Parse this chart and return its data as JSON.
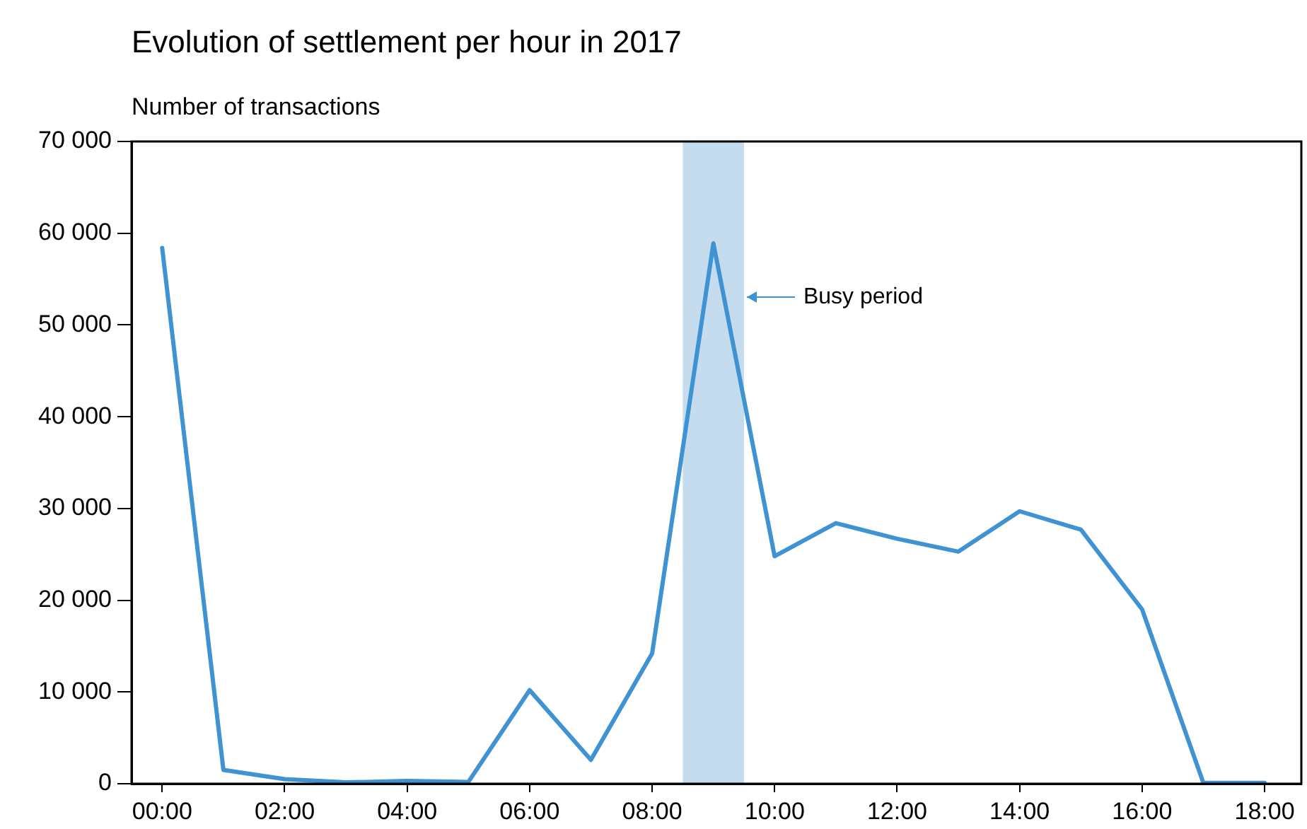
{
  "chart_data": {
    "type": "line",
    "title": "Evolution of settlement per hour in 2017",
    "ylabel": "Number of transactions",
    "x": [
      0,
      1,
      2,
      3,
      4,
      5,
      6,
      7,
      8,
      9,
      10,
      11,
      12,
      13,
      14,
      15,
      16,
      17,
      18
    ],
    "series": [
      {
        "color": "#3f93d2",
        "values": [
          58400,
          1500,
          500,
          150,
          300,
          200,
          10200,
          2600,
          14200,
          58900,
          24800,
          28400,
          26700,
          25300,
          29700,
          27700,
          19000,
          100,
          100
        ]
      }
    ],
    "xlim": [
      -0.5,
      18.6
    ],
    "xticks": [
      {
        "value": 0,
        "label": "00:00"
      },
      {
        "value": 2,
        "label": "02:00"
      },
      {
        "value": 4,
        "label": "04:00"
      },
      {
        "value": 6,
        "label": "06:00"
      },
      {
        "value": 8,
        "label": "08:00"
      },
      {
        "value": 10,
        "label": "10:00"
      },
      {
        "value": 12,
        "label": "12:00"
      },
      {
        "value": 14,
        "label": "14:00"
      },
      {
        "value": 16,
        "label": "16:00"
      },
      {
        "value": 18,
        "label": "18:00"
      }
    ],
    "ylim": [
      0,
      70000
    ],
    "yticks": [
      0,
      {
        "value": 10000,
        "label": "10 000"
      },
      {
        "value": 20000,
        "label": "20 000"
      },
      {
        "value": 30000,
        "label": "30 000"
      },
      {
        "value": 40000,
        "label": "40 000"
      },
      {
        "value": 50000,
        "label": "50 000"
      },
      {
        "value": 60000,
        "label": "60 000"
      },
      {
        "value": 70000,
        "label": "70 000"
      }
    ],
    "bands": [
      {
        "axis": "x",
        "from": 8.5,
        "to": 9.5,
        "label": "Busy period",
        "color": "#c5dcef"
      }
    ],
    "grid": false,
    "legend": false,
    "marker": "none",
    "line_style": "solid"
  }
}
